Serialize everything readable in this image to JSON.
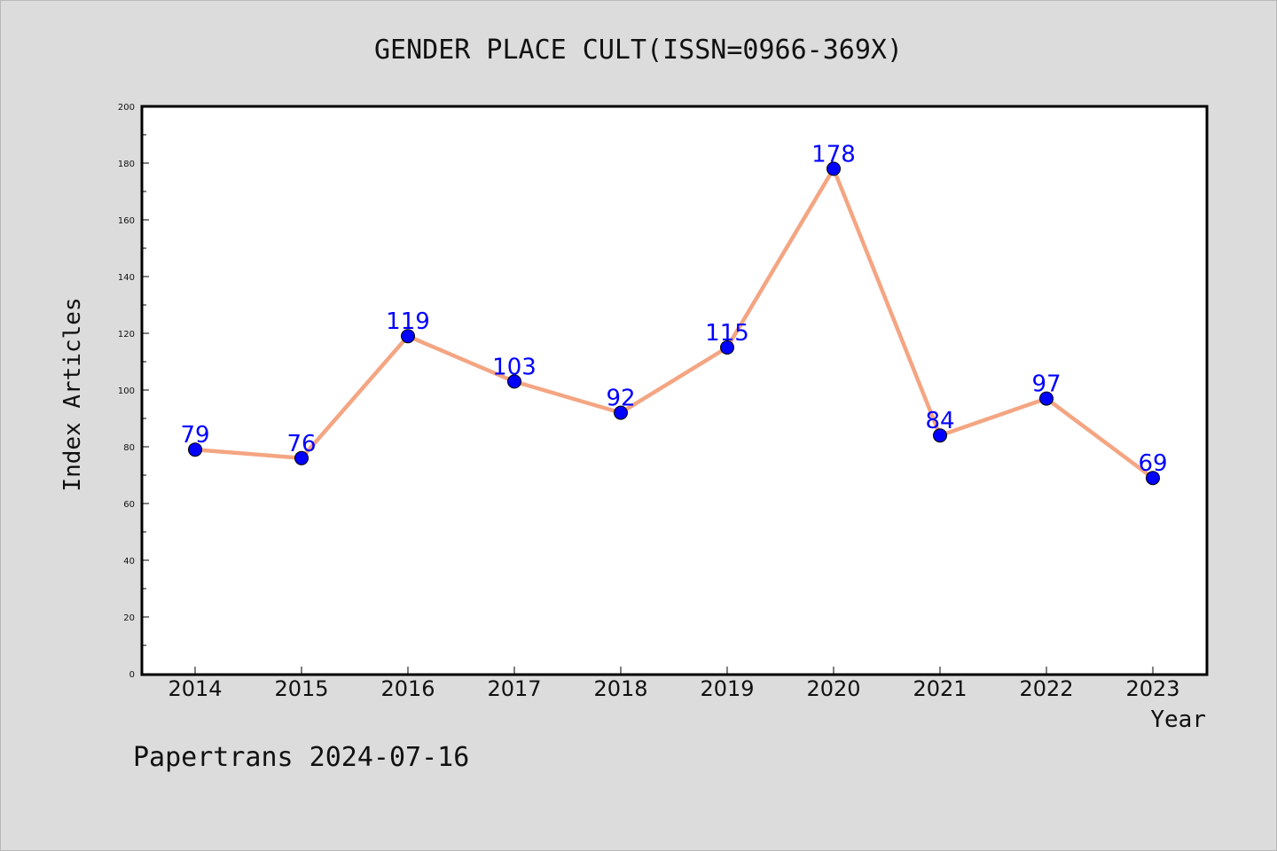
{
  "footer": {
    "text": "Papertrans 2024-07-16"
  },
  "colors": {
    "background": "#dcdcdc",
    "line": "#f4a582",
    "marker": "#0000ff",
    "label": "#0000ff"
  },
  "chart_data": {
    "type": "line",
    "title": "GENDER PLACE CULT(ISSN=0966-369X)",
    "xlabel": "Year",
    "ylabel": "Index Articles",
    "categories": [
      "2014",
      "2015",
      "2016",
      "2017",
      "2018",
      "2019",
      "2020",
      "2021",
      "2022",
      "2023"
    ],
    "series": [
      {
        "values": [
          79,
          76,
          119,
          103,
          92,
          115,
          178,
          84,
          97,
          69
        ]
      }
    ],
    "ylim": [
      0,
      200
    ],
    "yticks": [
      0,
      20,
      40,
      60,
      80,
      100,
      120,
      140,
      160,
      180,
      200
    ],
    "grid": false,
    "legend": "none",
    "data_labels": true
  }
}
